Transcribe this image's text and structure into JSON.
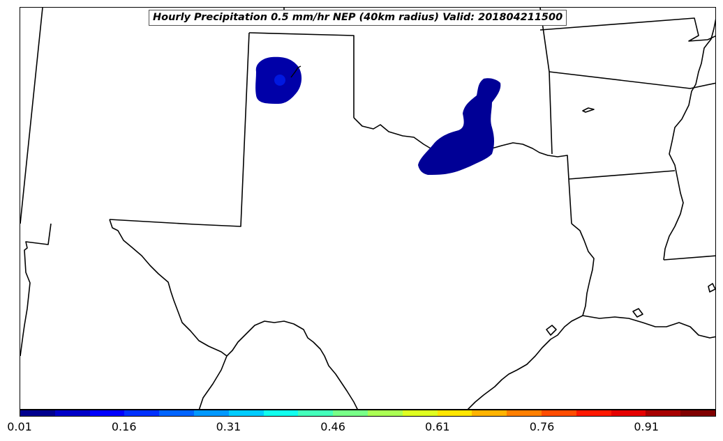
{
  "title": "Hourly Precipitation 0.5 mm/hr NEP (40km radius) Valid: 201804211500",
  "colorbar": {
    "colors": [
      "#00008f",
      "#0000c8",
      "#0000ff",
      "#0030ff",
      "#0064ff",
      "#0098ff",
      "#00ccff",
      "#10ffee",
      "#44ffbb",
      "#78ff88",
      "#abff54",
      "#dfff20",
      "#ffe600",
      "#ffb300",
      "#ff7f00",
      "#ff4c00",
      "#ff1800",
      "#e60000",
      "#a80000",
      "#800000"
    ],
    "tick_labels": [
      "0.01",
      "0.16",
      "0.31",
      "0.46",
      "0.61",
      "0.76",
      "0.91"
    ]
  },
  "precip_areas": [
    {
      "name": "Texas/Oklahoma panhandle cell",
      "value_range": "0.01–0.16",
      "fill": "#0000a8"
    },
    {
      "name": "Red River cell",
      "value_range": "0.01–0.16",
      "fill": "#000096"
    }
  ]
}
